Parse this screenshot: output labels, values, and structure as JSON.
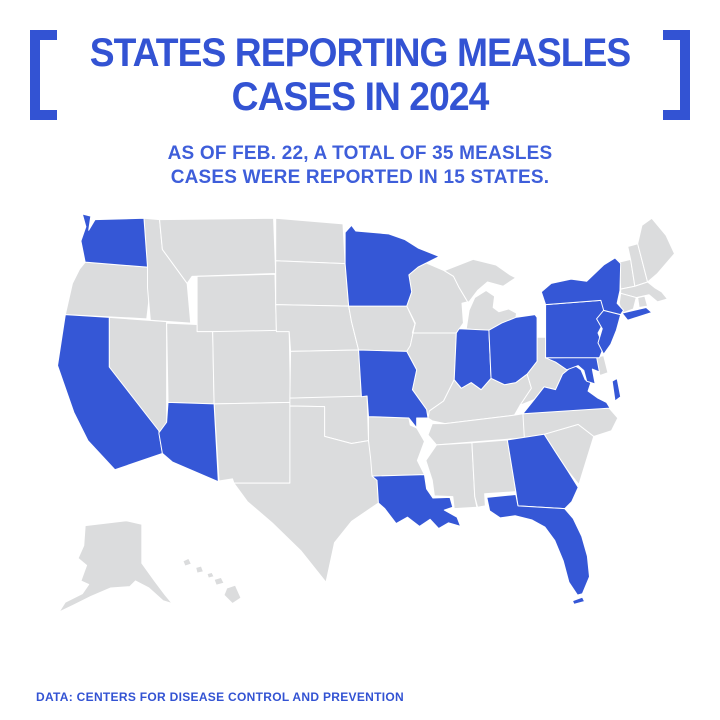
{
  "colors": {
    "accent": "#3353D3",
    "subtitle_text": "#3E5EDA",
    "state_highlight": "#3557D6",
    "state_base": "#DBDCDD",
    "state_border": "#FFFFFF",
    "background": "#FFFFFF"
  },
  "header": {
    "title_line1": "STATES REPORTING MEASLES",
    "title_line2": "CASES IN 2024",
    "subtitle_line1": "AS OF FEB. 22, A TOTAL OF 35 MEASLES",
    "subtitle_line2": "CASES WERE REPORTED IN 15 STATES."
  },
  "footer": {
    "source": "DATA: CENTERS FOR DISEASE CONTROL AND PREVENTION"
  },
  "map": {
    "description": "U.S. map; states shaded blue reported measles cases in 2024, gray states did not",
    "highlight_color": "#3557D6",
    "base_color": "#DBDCDD",
    "border_color": "#FFFFFF",
    "states": [
      {
        "id": "WA",
        "name": "Washington",
        "highlighted": true,
        "polys": [
          "88,22 100,25 97,45 106,30 175,28 180,97 92,90 86,60 93,40"
        ]
      },
      {
        "id": "OR",
        "name": "Oregon",
        "highlighted": false,
        "polys": [
          "92,90 180,97 184,126 179,170 64,164 74,120 84,100"
        ]
      },
      {
        "id": "CA",
        "name": "California",
        "highlighted": true,
        "polys": [
          "64,164 126,168 126,238 196,328 201,360 134,383 96,342 76,302 53,236"
        ]
      },
      {
        "id": "NV",
        "name": "Nevada",
        "highlighted": false,
        "polys": [
          "126,168 207,174 207,316 196,331 126,238"
        ]
      },
      {
        "id": "ID",
        "name": "Idaho",
        "highlighted": false,
        "polys": [
          "175,28 197,30 201,72 236,120 241,176 184,172 180,126 180,97"
        ]
      },
      {
        "id": "MT",
        "name": "Montana",
        "highlighted": false,
        "polys": [
          "197,30 358,28 361,106 243,110 236,120 201,72"
        ]
      },
      {
        "id": "WY",
        "name": "Wyoming",
        "highlighted": false,
        "polys": [
          "250,110 360,107 362,188 250,188"
        ]
      },
      {
        "id": "UT",
        "name": "Utah",
        "highlighted": false,
        "polys": [
          "207,176 250,178 250,188 272,188 274,290 209,288"
        ]
      },
      {
        "id": "CO",
        "name": "Colorado",
        "highlighted": false,
        "polys": [
          "272,188 380,186 382,288 274,290"
        ]
      },
      {
        "id": "AZ",
        "name": "Arizona",
        "highlighted": true,
        "polys": [
          "209,288 274,290 280,400 215,372 201,360 196,331 207,316"
        ]
      },
      {
        "id": "NM",
        "name": "New Mexico",
        "highlighted": false,
        "polys": [
          "274,290 382,288 381,402 302,402 300,396 281,399"
        ]
      },
      {
        "id": "ND",
        "name": "North Dakota",
        "highlighted": false,
        "polys": [
          "361,28 456,36 459,92 361,88"
        ]
      },
      {
        "id": "SD",
        "name": "South Dakota",
        "highlighted": false,
        "polys": [
          "361,88 459,92 464,152 361,150"
        ]
      },
      {
        "id": "NE",
        "name": "Nebraska",
        "highlighted": false,
        "polys": [
          "361,150 464,152 468,174 478,214 382,216 380,188 362,188"
        ]
      },
      {
        "id": "KS",
        "name": "Kansas",
        "highlighted": false,
        "polys": [
          "382,216 478,214 482,280 381,282"
        ]
      },
      {
        "id": "OK",
        "name": "Oklahoma",
        "highlighted": false,
        "polys": [
          "381,282 490,279 492,342 468,346 430,336 430,294 381,293"
        ]
      },
      {
        "id": "TX",
        "name": "Texas",
        "highlighted": false,
        "polys": [
          "381,293 430,294 430,336 468,346 492,342 497,367 504,398 506,430 468,456 444,486 432,542 397,498 356,458 321,428 302,402 381,402"
        ]
      },
      {
        "id": "MN",
        "name": "Minnesota",
        "highlighted": true,
        "polys": [
          "459,48 468,38 474,46 520,50 543,58 562,70 592,82 562,97 549,108 553,132 546,152 464,152 459,92"
        ]
      },
      {
        "id": "IA",
        "name": "Iowa",
        "highlighted": false,
        "polys": [
          "464,152 546,152 558,178 551,208 546,216 478,214 468,174"
        ]
      },
      {
        "id": "MO",
        "name": "Missouri",
        "highlighted": true,
        "polys": [
          "478,214 546,216 560,242 554,270 574,298 576,310 560,310 560,324 549,310 492,308 490,279 482,280"
        ]
      },
      {
        "id": "AR",
        "name": "Arkansas",
        "highlighted": false,
        "polys": [
          "492,308 549,310 551,320 560,324 571,343 561,370 571,390 497,392 495,367 492,342"
        ]
      },
      {
        "id": "LA",
        "name": "Louisiana",
        "highlighted": true,
        "polys": [
          "497,392 571,390 574,410 583,423 607,422 611,436 599,440 617,450 622,463 605,458 591,466 579,453 564,463 547,450 531,459 515,438 506,430 504,398"
        ]
      },
      {
        "id": "WI",
        "name": "Wisconsin",
        "highlighted": false,
        "polys": [
          "548,104 571,90 599,102 612,110 620,126 632,146 624,148 626,176 616,190 554,190 558,176 546,152 553,132 549,108"
        ]
      },
      {
        "id": "IL",
        "name": "Illinois",
        "highlighted": false,
        "polys": [
          "554,190 616,190 613,256 598,286 578,300 576,310 574,298 554,270 560,242 546,216 551,208 558,176"
        ]
      },
      {
        "id": "MI",
        "name": "Michigan",
        "highlighted": false,
        "polys": [
          "599,102 640,86 672,94 692,108 700,112 682,124 660,118 646,130 634,146 632,146 620,126 612,110",
          "630,184 634,158 642,140 658,130 670,138 668,154 676,160 690,156 701,162 699,176 688,183 680,176 663,186 645,186"
        ]
      },
      {
        "id": "IN",
        "name": "Indiana",
        "highlighted": true,
        "polys": [
          "616,190 620,184 662,186 665,254 651,270 637,260 623,268 613,256"
        ]
      },
      {
        "id": "OH",
        "name": "Ohio",
        "highlighted": true,
        "polys": [
          "662,186 680,176 700,168 727,164 730,168 730,230 716,248 700,260 684,263 665,254"
        ]
      },
      {
        "id": "KY",
        "name": "Kentucky",
        "highlighted": false,
        "polys": [
          "576,310 578,300 598,286 613,256 623,268 637,260 651,270 665,254 684,263 700,260 716,248 722,268 706,292 698,306 600,318 582,314"
        ]
      },
      {
        "id": "TN",
        "name": "Tennessee",
        "highlighted": false,
        "polys": [
          "582,318 600,318 698,306 722,302 712,338 588,348 576,334"
        ]
      },
      {
        "id": "MS",
        "name": "Mississippi",
        "highlighted": false,
        "polys": [
          "588,348 638,345 642,421 645,436 613,438 611,421 585,420 582,398 573,370"
        ]
      },
      {
        "id": "AL",
        "name": "Alabama",
        "highlighted": false,
        "polys": [
          "638,345 688,341 700,414 656,417 657,434 646,436 642,421"
        ]
      },
      {
        "id": "GA",
        "name": "Georgia",
        "highlighted": true,
        "polys": [
          "688,341 740,333 756,358 773,384 788,408 779,428 769,438 703,434 700,414"
        ]
      },
      {
        "id": "FL",
        "name": "Florida",
        "highlighted": true,
        "polys": [
          "659,422 700,418 703,434 769,438 781,452 793,477 801,505 804,534 794,558 787,560 775,542 767,512 755,483 741,464 723,454 699,448 678,451 663,441",
          "780,568 794,563 797,569 782,573"
        ]
      },
      {
        "id": "SC",
        "name": "South Carolina",
        "highlighted": false,
        "polys": [
          "740,333 788,319 810,336 789,404 773,384 756,358"
        ]
      },
      {
        "id": "NC",
        "name": "North Carolina",
        "highlighted": false,
        "polys": [
          "710,304 830,294 844,310 835,328 810,336 788,319 740,333 712,338"
        ]
      },
      {
        "id": "VA",
        "name": "Virginia",
        "highlighted": true,
        "polys": [
          "710,304 726,284 740,266 756,270 766,248 782,235 792,242 798,256 806,260 802,272 816,282 828,288 833,296",
          "836,258 843,254 848,280 840,286"
        ]
      },
      {
        "id": "WV",
        "name": "West Virginia",
        "highlighted": false,
        "polys": [
          "730,230 730,196 742,196 742,225 764,224 782,235 766,248 756,270 740,266 726,284 706,292 722,268 716,248 718,240"
        ]
      },
      {
        "id": "MD",
        "name": "Maryland",
        "highlighted": true,
        "polys": [
          "742,225 814,224 818,245 808,241 812,262 800,258 796,243 788,236 772,242 756,231"
        ]
      },
      {
        "id": "DE",
        "name": "Delaware",
        "highlighted": false,
        "polys": [
          "814,224 824,222 830,246 819,250 813,234"
        ]
      },
      {
        "id": "PA",
        "name": "Pennsylvania",
        "highlighted": true,
        "polys": [
          "742,150 820,144 830,164 816,190 824,210 818,225 742,225"
        ]
      },
      {
        "id": "NJ",
        "name": "New Jersey",
        "highlighted": true,
        "polys": [
          "824,158 848,164 842,186 834,206 824,220 816,204 822,184 814,170"
        ]
      },
      {
        "id": "NY",
        "name": "New York",
        "highlighted": true,
        "polys": [
          "742,150 736,132 750,120 778,114 800,117 824,94 840,84 848,92 847,130 843,148 852,158 848,164 824,158 820,144",
          "850,162 884,154 892,161 858,172"
        ]
      },
      {
        "id": "VT",
        "name": "Vermont",
        "highlighted": false,
        "polys": [
          "846,90 862,86 868,124 848,128"
        ]
      },
      {
        "id": "NH",
        "name": "New Hampshire",
        "highlighted": false,
        "polys": [
          "862,86 858,68 872,64 886,118 868,124"
        ]
      },
      {
        "id": "ME",
        "name": "Maine",
        "highlighted": false,
        "polys": [
          "872,64 878,38 892,28 912,52 924,78 900,106 886,118"
        ]
      },
      {
        "id": "MA",
        "name": "Massachusetts",
        "highlighted": false,
        "polys": [
          "848,128 868,124 886,118 896,126 906,132 914,142 900,146 888,136 870,140 848,134"
        ]
      },
      {
        "id": "CT",
        "name": "Connecticut",
        "highlighted": false,
        "polys": [
          "848,134 870,140 866,156 850,162 846,148"
        ]
      },
      {
        "id": "RI",
        "name": "Rhode Island",
        "highlighted": false,
        "polys": [
          "872,140 882,138 886,152 874,154"
        ]
      },
      {
        "id": "AK",
        "name": "Alaska",
        "highlighted": false,
        "polys": [
          "92,462 150,455 172,460 172,515 190,540 205,560 215,572 202,568 182,550 163,540 155,548 128,550 100,562 76,574 55,584 64,570 88,558 97,545 86,540 94,518 82,508 90,490"
        ]
      },
      {
        "id": "HI",
        "name": "Hawaii",
        "highlighted": false,
        "polys": [
          "230,512 238,508 242,516 233,519",
          "248,521 256,519 259,527 250,529",
          "264,530 271,528 274,534 266,536",
          "274,538 284,535 288,543 277,546",
          "292,550 304,546 312,564 300,572 288,560"
        ]
      }
    ]
  }
}
